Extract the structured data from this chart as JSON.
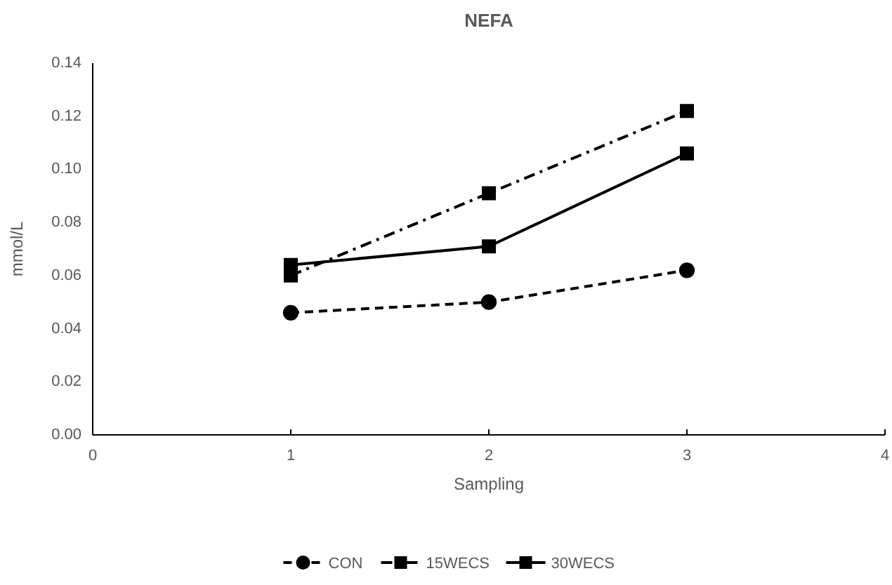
{
  "chart_data": {
    "type": "line",
    "title": "NEFA",
    "xlabel": "Sampling",
    "ylabel": "mmol/L",
    "x": [
      1,
      2,
      3
    ],
    "series": [
      {
        "name": "CON",
        "color": "#000000",
        "values": [
          0.046,
          0.05,
          0.062
        ],
        "line_style": "dashed",
        "marker": "circle"
      },
      {
        "name": "15WECS",
        "color": "#000000",
        "values": [
          0.06,
          0.091,
          0.122
        ],
        "line_style": "dashdot",
        "marker": "square"
      },
      {
        "name": "30WECS",
        "color": "#000000",
        "values": [
          0.064,
          0.071,
          0.106
        ],
        "line_style": "solid",
        "marker": "square"
      }
    ],
    "xlim": [
      0,
      4
    ],
    "xticks": [
      0,
      1,
      2,
      3,
      4
    ],
    "ylim": [
      0,
      0.14
    ],
    "yticks": [
      {
        "value": 0,
        "label": "0.00"
      },
      {
        "value": 0.02,
        "label": "0.02"
      },
      {
        "value": 0.04,
        "label": "0.04"
      },
      {
        "value": 0.06,
        "label": "0.06"
      },
      {
        "value": 0.08,
        "label": "0.08"
      },
      {
        "value": 0.1,
        "label": "0.10"
      },
      {
        "value": 0.12,
        "label": "0.12"
      },
      {
        "value": 0.14,
        "label": "0.14"
      }
    ],
    "grid": false,
    "legend": "bottom"
  }
}
